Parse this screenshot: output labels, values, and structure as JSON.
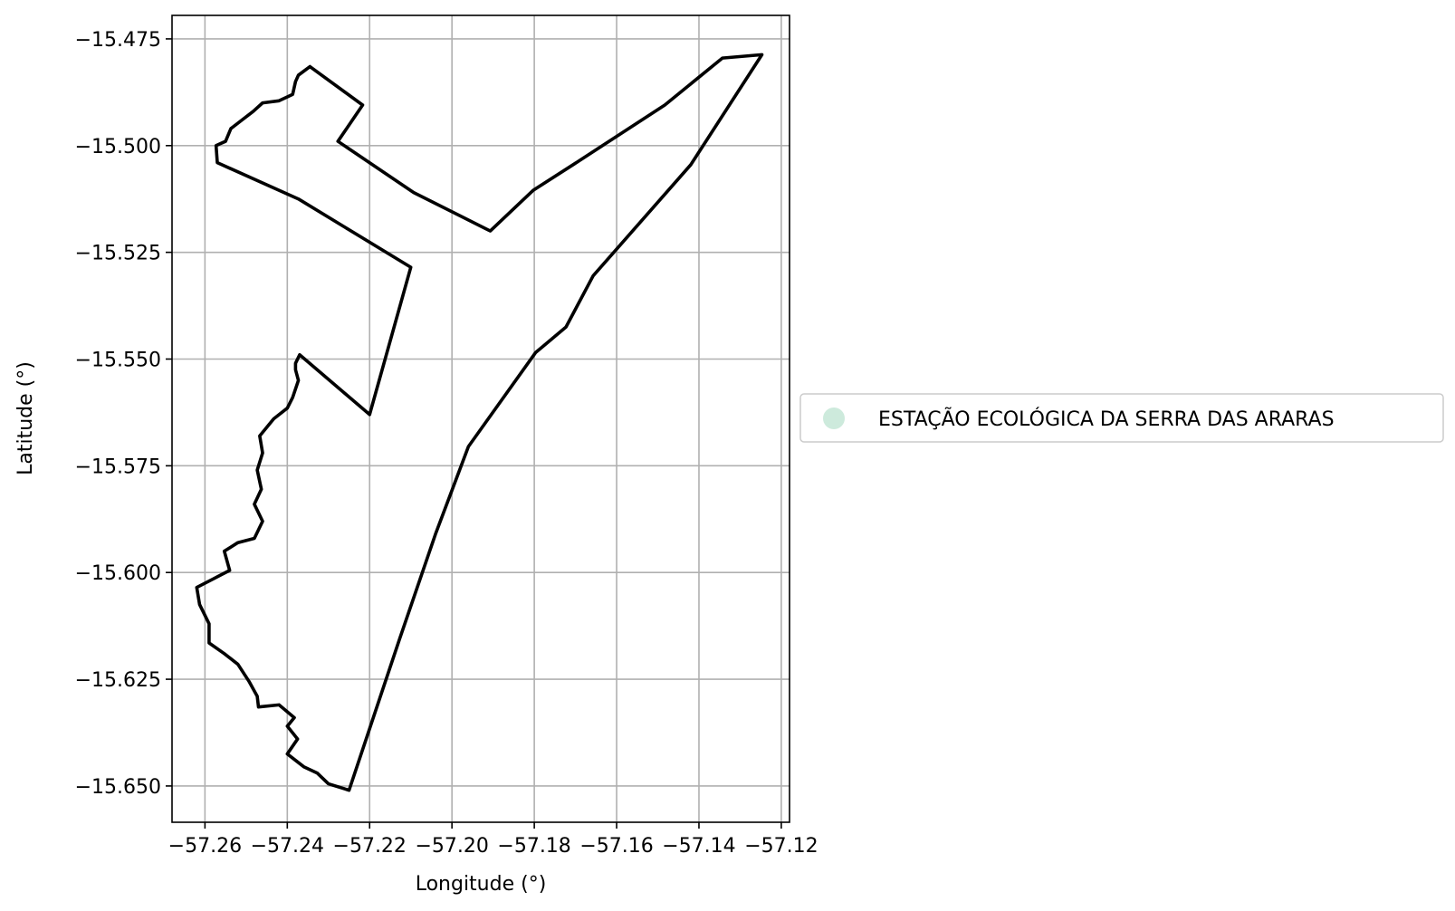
{
  "chart_data": {
    "type": "map",
    "xlabel": "Longitude (°)",
    "ylabel": "Latitude (°)",
    "xlim": [
      -57.268,
      -57.118
    ],
    "ylim": [
      -15.6585,
      -15.4695
    ],
    "x_ticks": [
      -57.26,
      -57.24,
      -57.22,
      -57.2,
      -57.18,
      -57.16,
      -57.14,
      -57.12
    ],
    "x_tick_labels": [
      "−57.26",
      "−57.24",
      "−57.22",
      "−57.20",
      "−57.18",
      "−57.16",
      "−57.14",
      "−57.12"
    ],
    "y_ticks": [
      -15.475,
      -15.5,
      -15.525,
      -15.55,
      -15.575,
      -15.6,
      -15.625,
      -15.65
    ],
    "y_tick_labels": [
      "−15.475",
      "−15.500",
      "−15.525",
      "−15.550",
      "−15.575",
      "−15.600",
      "−15.625",
      "−15.650"
    ],
    "grid": true,
    "legend_position": "outside-right",
    "legend": [
      {
        "label": "ESTAÇÃO ECOLÓGICA DA SERRA DAS ARARAS",
        "color": "#cdeadc"
      }
    ],
    "boundary_color": "#000000",
    "boundary": [
      [
        -57.2345,
        -15.4815
      ],
      [
        -57.2217,
        -15.4905
      ],
      [
        -57.2277,
        -15.499
      ],
      [
        -57.2093,
        -15.511
      ],
      [
        -57.1907,
        -15.52
      ],
      [
        -57.1803,
        -15.5105
      ],
      [
        -57.169,
        -15.5035
      ],
      [
        -57.1483,
        -15.4905
      ],
      [
        -57.1343,
        -15.4795
      ],
      [
        -57.1247,
        -15.4787
      ],
      [
        -57.142,
        -15.5045
      ],
      [
        -57.1657,
        -15.5305
      ],
      [
        -57.1723,
        -15.5425
      ],
      [
        -57.1797,
        -15.5485
      ],
      [
        -57.196,
        -15.5705
      ],
      [
        -57.204,
        -15.591
      ],
      [
        -57.2127,
        -15.6155
      ],
      [
        -57.225,
        -15.651
      ],
      [
        -57.23,
        -15.6495
      ],
      [
        -57.2327,
        -15.647
      ],
      [
        -57.236,
        -15.6455
      ],
      [
        -57.24,
        -15.6425
      ],
      [
        -57.2375,
        -15.639
      ],
      [
        -57.24,
        -15.636
      ],
      [
        -57.2383,
        -15.634
      ],
      [
        -57.242,
        -15.631
      ],
      [
        -57.247,
        -15.6315
      ],
      [
        -57.2473,
        -15.629
      ],
      [
        -57.2493,
        -15.6255
      ],
      [
        -57.252,
        -15.6215
      ],
      [
        -57.2553,
        -15.619
      ],
      [
        -57.259,
        -15.6165
      ],
      [
        -57.259,
        -15.612
      ],
      [
        -57.2613,
        -15.6075
      ],
      [
        -57.262,
        -15.6035
      ],
      [
        -57.258,
        -15.6015
      ],
      [
        -57.254,
        -15.5995
      ],
      [
        -57.2553,
        -15.595
      ],
      [
        -57.252,
        -15.593
      ],
      [
        -57.248,
        -15.592
      ],
      [
        -57.246,
        -15.588
      ],
      [
        -57.248,
        -15.584
      ],
      [
        -57.2463,
        -15.5805
      ],
      [
        -57.2473,
        -15.576
      ],
      [
        -57.246,
        -15.572
      ],
      [
        -57.2467,
        -15.568
      ],
      [
        -57.2433,
        -15.564
      ],
      [
        -57.24,
        -15.5615
      ],
      [
        -57.2387,
        -15.559
      ],
      [
        -57.2373,
        -15.555
      ],
      [
        -57.238,
        -15.5525
      ],
      [
        -57.238,
        -15.551
      ],
      [
        -57.237,
        -15.549
      ],
      [
        -57.22,
        -15.563
      ],
      [
        -57.21,
        -15.5285
      ],
      [
        -57.2373,
        -15.5125
      ],
      [
        -57.257,
        -15.504
      ],
      [
        -57.2573,
        -15.5
      ],
      [
        -57.255,
        -15.499
      ],
      [
        -57.2537,
        -15.496
      ],
      [
        -57.251,
        -15.494
      ],
      [
        -57.2483,
        -15.492
      ],
      [
        -57.246,
        -15.49
      ],
      [
        -57.242,
        -15.4895
      ],
      [
        -57.2387,
        -15.488
      ],
      [
        -57.238,
        -15.485
      ],
      [
        -57.2373,
        -15.4835
      ],
      [
        -57.2345,
        -15.4815
      ]
    ]
  }
}
